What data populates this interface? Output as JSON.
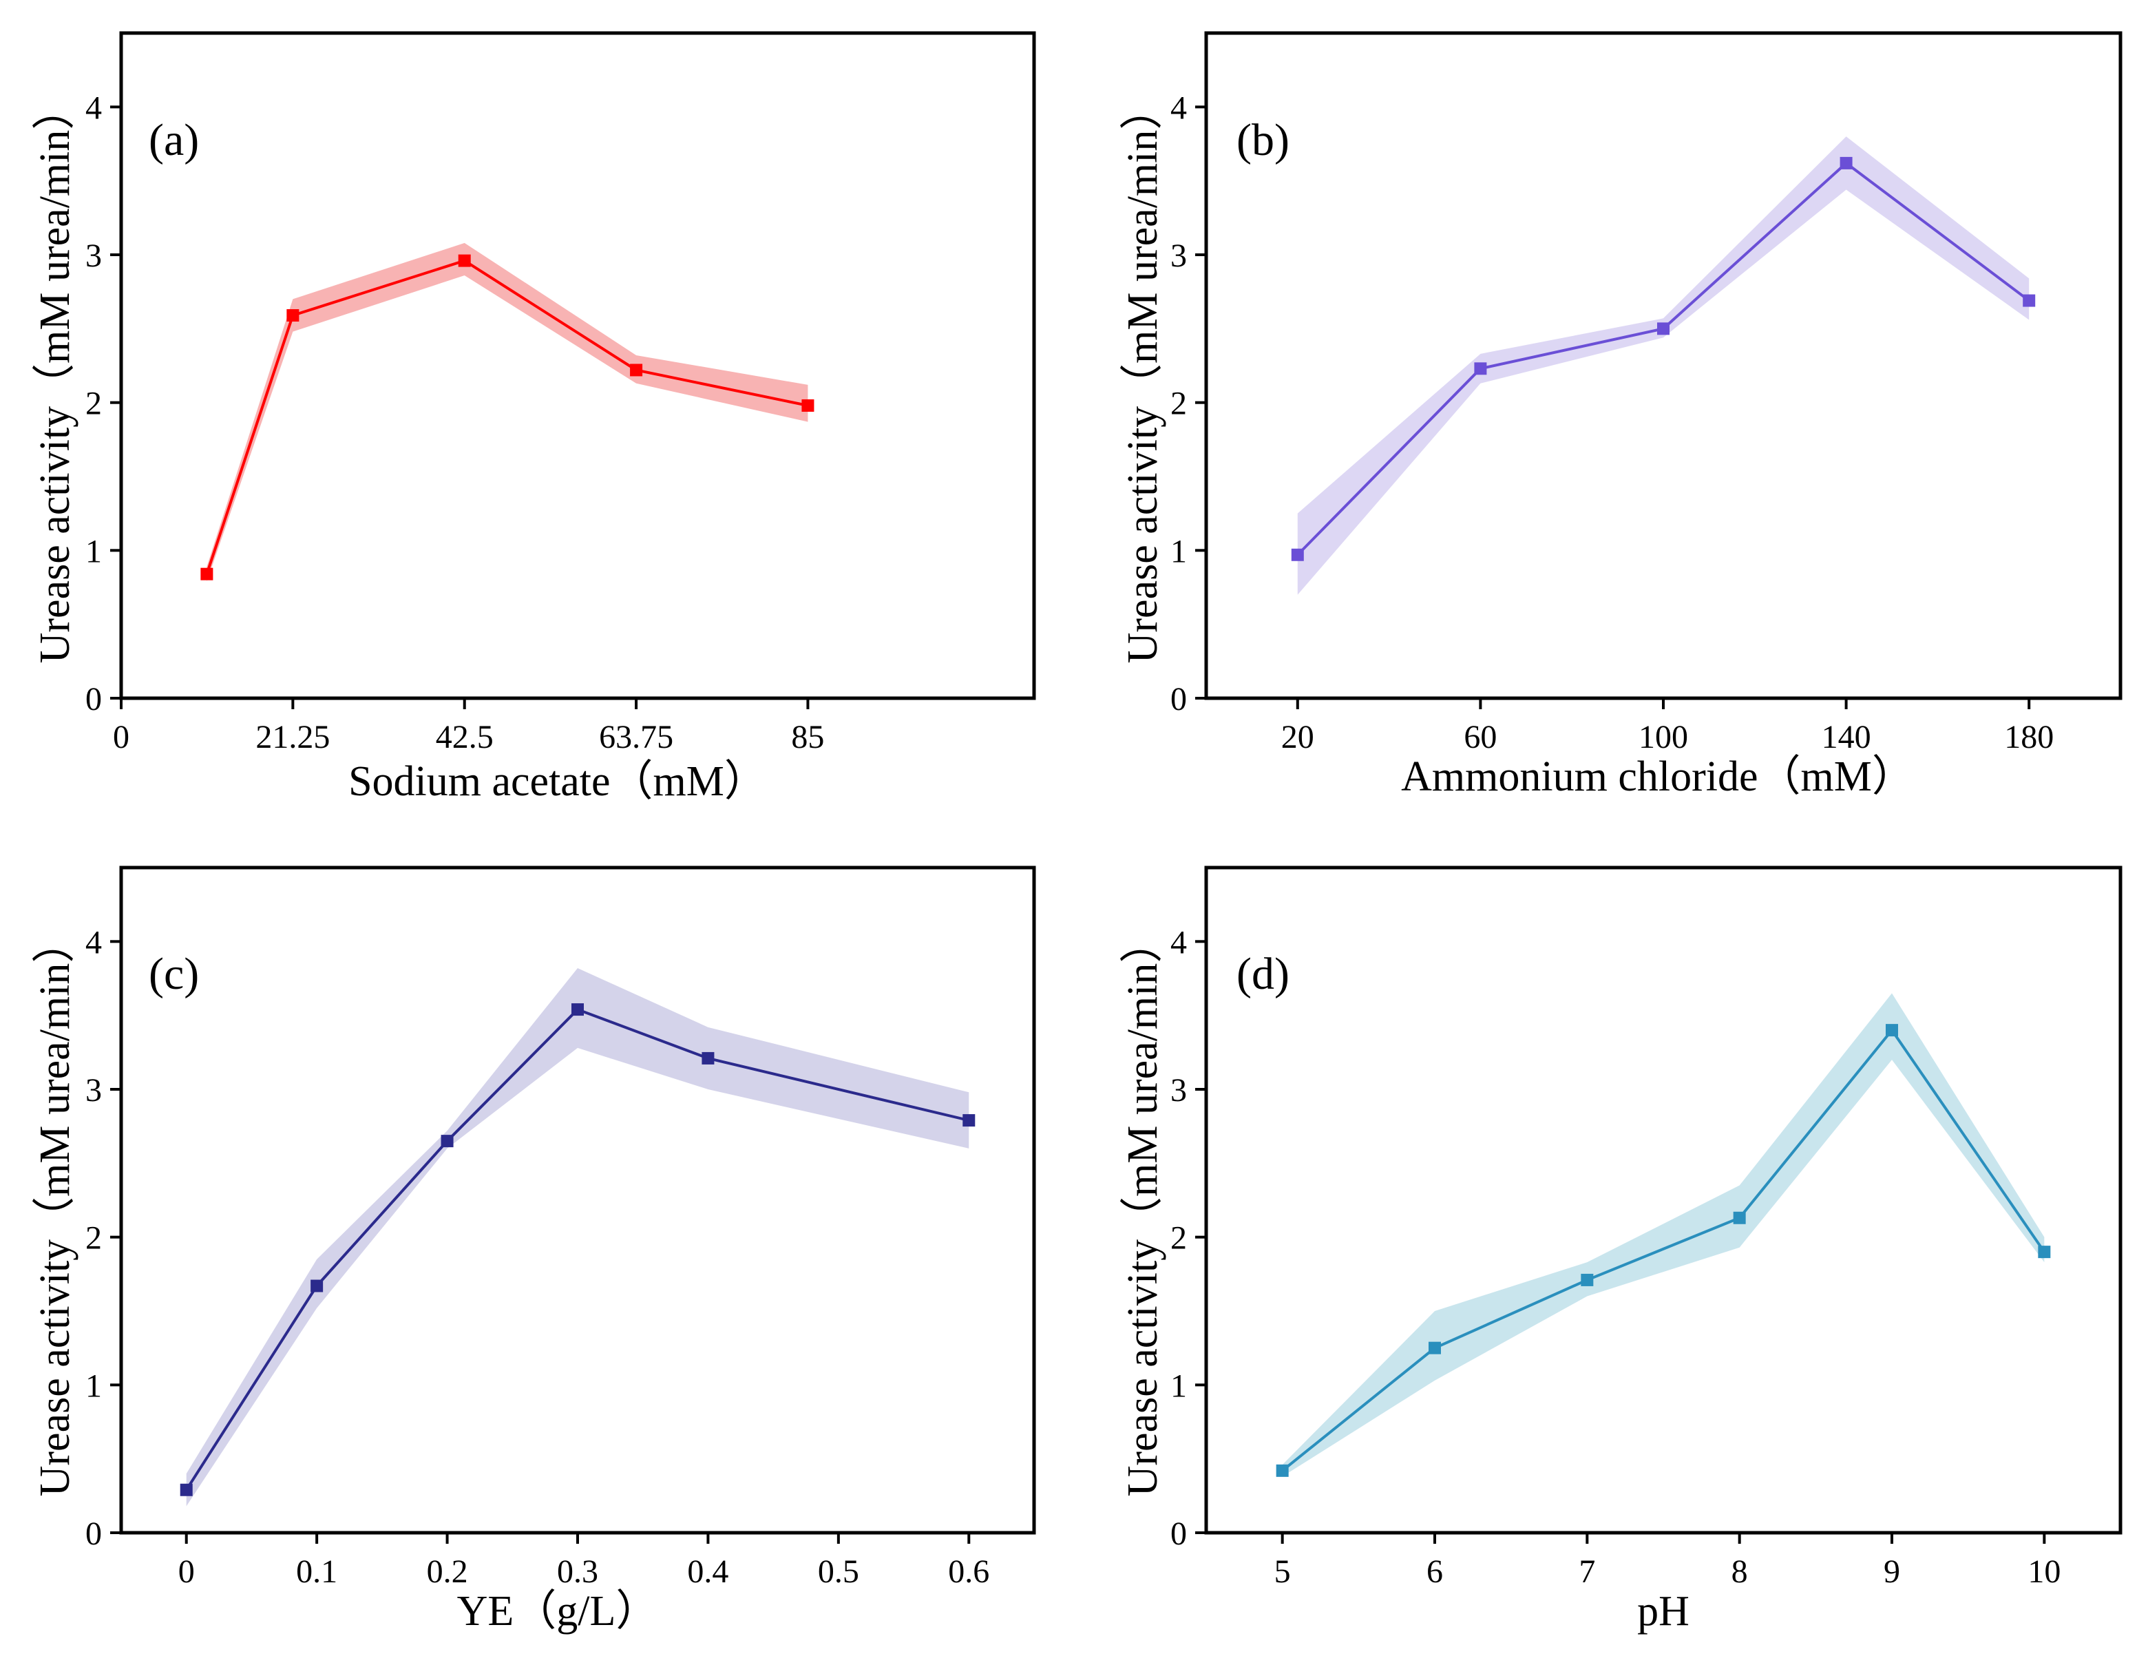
{
  "figure": {
    "description": "Urease activity under different culture conditions"
  },
  "chart_data": [
    {
      "panel": "(a)",
      "type": "line",
      "band": "shaded error band",
      "color": "#ff0000",
      "band_color": "#f7a6a6",
      "xlabel": "Sodium acetate（mM）",
      "ylabel": "Urease activity（mM urea/min）",
      "xlim": [
        0,
        113
      ],
      "ylim": [
        0,
        4.5
      ],
      "xticks": [
        0,
        21.25,
        42.5,
        63.75,
        85
      ],
      "xtick_labels": [
        "0",
        "21.25",
        "42.5",
        "63.75",
        "85"
      ],
      "yticks": [
        0,
        1,
        2,
        3,
        4
      ],
      "ytick_labels": [
        "0",
        "1",
        "2",
        "3",
        "4"
      ],
      "x": [
        10.6,
        21.25,
        42.5,
        63.75,
        85
      ],
      "y": [
        0.84,
        2.59,
        2.96,
        2.22,
        1.98
      ],
      "y_low": [
        0.79,
        2.48,
        2.86,
        2.13,
        1.87
      ],
      "y_high": [
        0.89,
        2.7,
        3.08,
        2.32,
        2.12
      ]
    },
    {
      "panel": "(b)",
      "type": "line",
      "band": "shaded error band",
      "color": "#6a4fd6",
      "band_color": "#d7d0f2",
      "xlabel": "Ammonium chloride（mM）",
      "ylabel": "Urease activity（mM urea/min）",
      "xlim": [
        0,
        200
      ],
      "ylim": [
        0,
        4.5
      ],
      "xticks": [
        20,
        60,
        100,
        140,
        180
      ],
      "xtick_labels": [
        "20",
        "60",
        "100",
        "140",
        "180"
      ],
      "yticks": [
        0,
        1,
        2,
        3,
        4
      ],
      "ytick_labels": [
        "0",
        "1",
        "2",
        "3",
        "4"
      ],
      "x": [
        20,
        60,
        100,
        140,
        180
      ],
      "y": [
        0.97,
        2.23,
        2.5,
        3.62,
        2.69
      ],
      "y_low": [
        0.7,
        2.13,
        2.44,
        3.44,
        2.56
      ],
      "y_high": [
        1.25,
        2.33,
        2.57,
        3.8,
        2.84
      ]
    },
    {
      "panel": "(c)",
      "type": "line",
      "band": "shaded error band",
      "color": "#2b2a8c",
      "band_color": "#cdcbe6",
      "xlabel": "YE（g/L）",
      "ylabel": "Urease activity（mM urea/min）",
      "xlim": [
        -0.05,
        0.65
      ],
      "ylim": [
        0,
        4.5
      ],
      "xticks": [
        0,
        0.1,
        0.2,
        0.3,
        0.4,
        0.5,
        0.6
      ],
      "xtick_labels": [
        "0",
        "0.1",
        "0.2",
        "0.3",
        "0.4",
        "0.5",
        "0.6"
      ],
      "yticks": [
        0,
        1,
        2,
        3,
        4
      ],
      "ytick_labels": [
        "0",
        "1",
        "2",
        "3",
        "4"
      ],
      "x": [
        0,
        0.1,
        0.2,
        0.3,
        0.4,
        0.5,
        0.6
      ],
      "y": [
        0.29,
        1.67,
        2.65,
        3.54,
        3.21,
        null,
        2.79
      ],
      "y_low": [
        0.18,
        1.52,
        2.6,
        3.28,
        3.0,
        null,
        2.6
      ],
      "y_high": [
        0.4,
        1.85,
        2.72,
        3.82,
        3.42,
        null,
        2.98
      ]
    },
    {
      "panel": "(d)",
      "type": "line",
      "band": "shaded error band",
      "color": "#2a8fbd",
      "band_color": "#bfe0ea",
      "xlabel": "pH",
      "ylabel": "Urease activity（mM urea/min）",
      "xlim": [
        4.5,
        10.5
      ],
      "ylim": [
        0,
        4.5
      ],
      "xticks": [
        5,
        6,
        7,
        8,
        9,
        10
      ],
      "xtick_labels": [
        "5",
        "6",
        "7",
        "8",
        "9",
        "10"
      ],
      "yticks": [
        0,
        1,
        2,
        3,
        4
      ],
      "ytick_labels": [
        "0",
        "1",
        "2",
        "3",
        "4"
      ],
      "x": [
        5,
        6,
        7,
        8,
        9,
        10
      ],
      "y": [
        0.42,
        1.25,
        1.71,
        2.13,
        3.4,
        1.9
      ],
      "y_low": [
        0.38,
        1.03,
        1.6,
        1.93,
        3.2,
        1.83
      ],
      "y_high": [
        0.46,
        1.5,
        1.83,
        2.35,
        3.65,
        2.0
      ]
    }
  ]
}
